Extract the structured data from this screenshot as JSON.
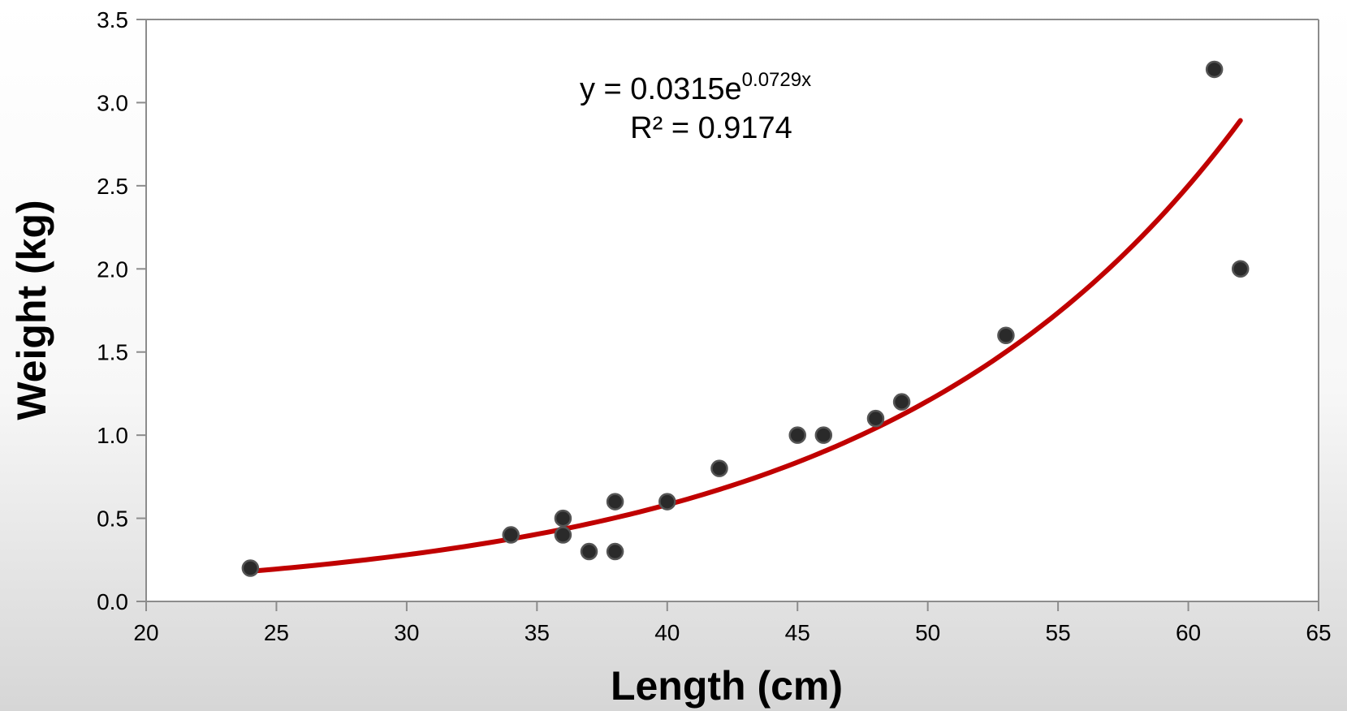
{
  "chart_data": {
    "type": "scatter",
    "title": "",
    "xlabel": "Length (cm)",
    "ylabel": "Weight (kg)",
    "xlim": [
      20,
      65
    ],
    "ylim": [
      0,
      3.5
    ],
    "x_ticks": [
      "20",
      "25",
      "30",
      "35",
      "40",
      "45",
      "50",
      "55",
      "60",
      "65"
    ],
    "y_ticks": [
      "0.0",
      "0.5",
      "1.0",
      "1.5",
      "2.0",
      "2.5",
      "3.0",
      "3.5"
    ],
    "grid": false,
    "series": [
      {
        "type": "scatter",
        "color": "#2a2a2a",
        "points": [
          {
            "x": 24,
            "y": 0.2
          },
          {
            "x": 34,
            "y": 0.4
          },
          {
            "x": 36,
            "y": 0.5
          },
          {
            "x": 36,
            "y": 0.4
          },
          {
            "x": 37,
            "y": 0.3
          },
          {
            "x": 38,
            "y": 0.6
          },
          {
            "x": 38,
            "y": 0.3
          },
          {
            "x": 40,
            "y": 0.6
          },
          {
            "x": 42,
            "y": 0.8
          },
          {
            "x": 45,
            "y": 1.0
          },
          {
            "x": 46,
            "y": 1.0
          },
          {
            "x": 48,
            "y": 1.1
          },
          {
            "x": 49,
            "y": 1.2
          },
          {
            "x": 53,
            "y": 1.6
          },
          {
            "x": 61,
            "y": 3.2
          },
          {
            "x": 62,
            "y": 2.0
          }
        ]
      }
    ],
    "trendline": {
      "type": "exponential",
      "a": 0.0315,
      "b": 0.0729,
      "x_range": [
        24,
        62
      ],
      "color": "#c00000",
      "equation_main": "y = 0.0315e",
      "equation_exponent": "0.0729x",
      "r_squared_label": "R² = 0.9174"
    }
  }
}
